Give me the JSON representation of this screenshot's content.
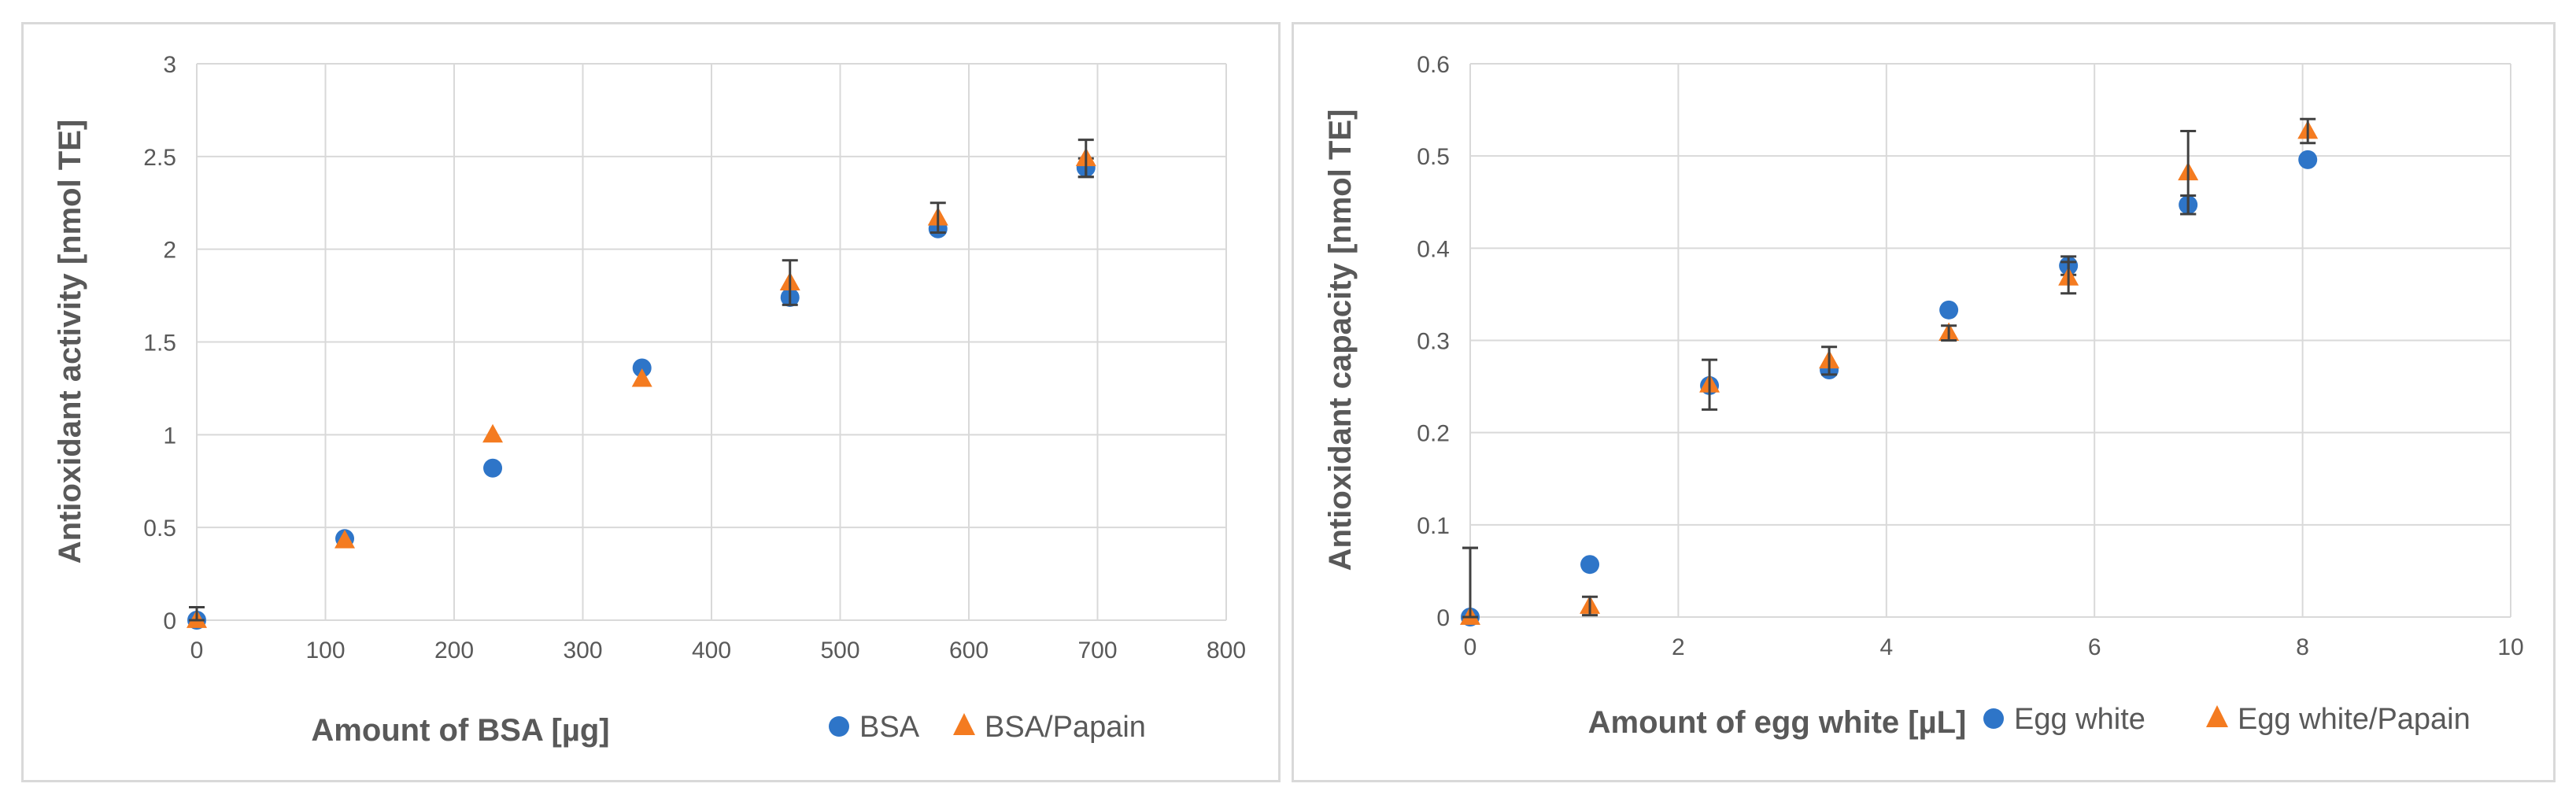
{
  "colors": {
    "series_circle": "#2E75C8",
    "series_triangle": "#F47B20",
    "grid": "#d9d9d9",
    "error_bar": "#404040"
  },
  "chart_data": [
    {
      "type": "scatter",
      "xlabel": "Amount of BSA [µg]",
      "ylabel": "Antioxidant activity [nmol TE]",
      "xlim": [
        0,
        800
      ],
      "ylim": [
        0,
        3
      ],
      "x_ticks": [
        "0",
        "100",
        "200",
        "300",
        "400",
        "500",
        "600",
        "700",
        "800"
      ],
      "y_ticks": [
        "0",
        "0.5",
        "1",
        "1.5",
        "2",
        "2.5",
        "3"
      ],
      "grid": true,
      "legend_position": "bottom-right",
      "series": [
        {
          "name": "BSA",
          "marker": "circle",
          "x": [
            0,
            115,
            230,
            346,
            461,
            576,
            691
          ],
          "y": [
            0.0,
            0.44,
            0.82,
            1.36,
            1.74,
            2.11,
            2.44
          ],
          "err": [
            0.07,
            0.0,
            0.0,
            0.0,
            0.0,
            0.0,
            0.05
          ]
        },
        {
          "name": "BSA/Papain",
          "marker": "triangle",
          "x": [
            0,
            115,
            230,
            346,
            461,
            576,
            691
          ],
          "y": [
            0.0,
            0.43,
            1.0,
            1.3,
            1.82,
            2.17,
            2.49
          ],
          "err": [
            0.07,
            0.0,
            0.0,
            0.0,
            0.12,
            0.08,
            0.1
          ]
        }
      ]
    },
    {
      "type": "scatter",
      "xlabel": "Amount of egg white [µL]",
      "ylabel": "Antioxidant capacity [nmol TE]",
      "xlim": [
        0,
        10
      ],
      "ylim": [
        0,
        0.6
      ],
      "x_ticks": [
        "0",
        "2",
        "4",
        "6",
        "8",
        "10"
      ],
      "y_ticks": [
        "0",
        "0.1",
        "0.2",
        "0.3",
        "0.4",
        "0.5",
        "0.6"
      ],
      "grid": true,
      "legend_position": "bottom-right",
      "series": [
        {
          "name": "Egg white",
          "marker": "circle",
          "x": [
            0,
            1.15,
            2.3,
            3.45,
            4.6,
            5.75,
            6.9,
            8.05
          ],
          "y": [
            0.0,
            0.057,
            0.251,
            0.268,
            0.333,
            0.381,
            0.447,
            0.496
          ],
          "err": [
            0.075,
            0.0,
            0.0,
            0.0,
            0.0,
            0.01,
            0.01,
            0.0
          ]
        },
        {
          "name": "Egg white/Papain",
          "marker": "triangle",
          "x": [
            0,
            1.15,
            2.3,
            3.45,
            4.6,
            5.75,
            6.9,
            8.05
          ],
          "y": [
            0.0,
            0.012,
            0.252,
            0.278,
            0.308,
            0.368,
            0.482,
            0.527
          ],
          "err": [
            0.075,
            0.01,
            0.027,
            0.015,
            0.008,
            0.017,
            0.045,
            0.013
          ]
        }
      ]
    }
  ]
}
